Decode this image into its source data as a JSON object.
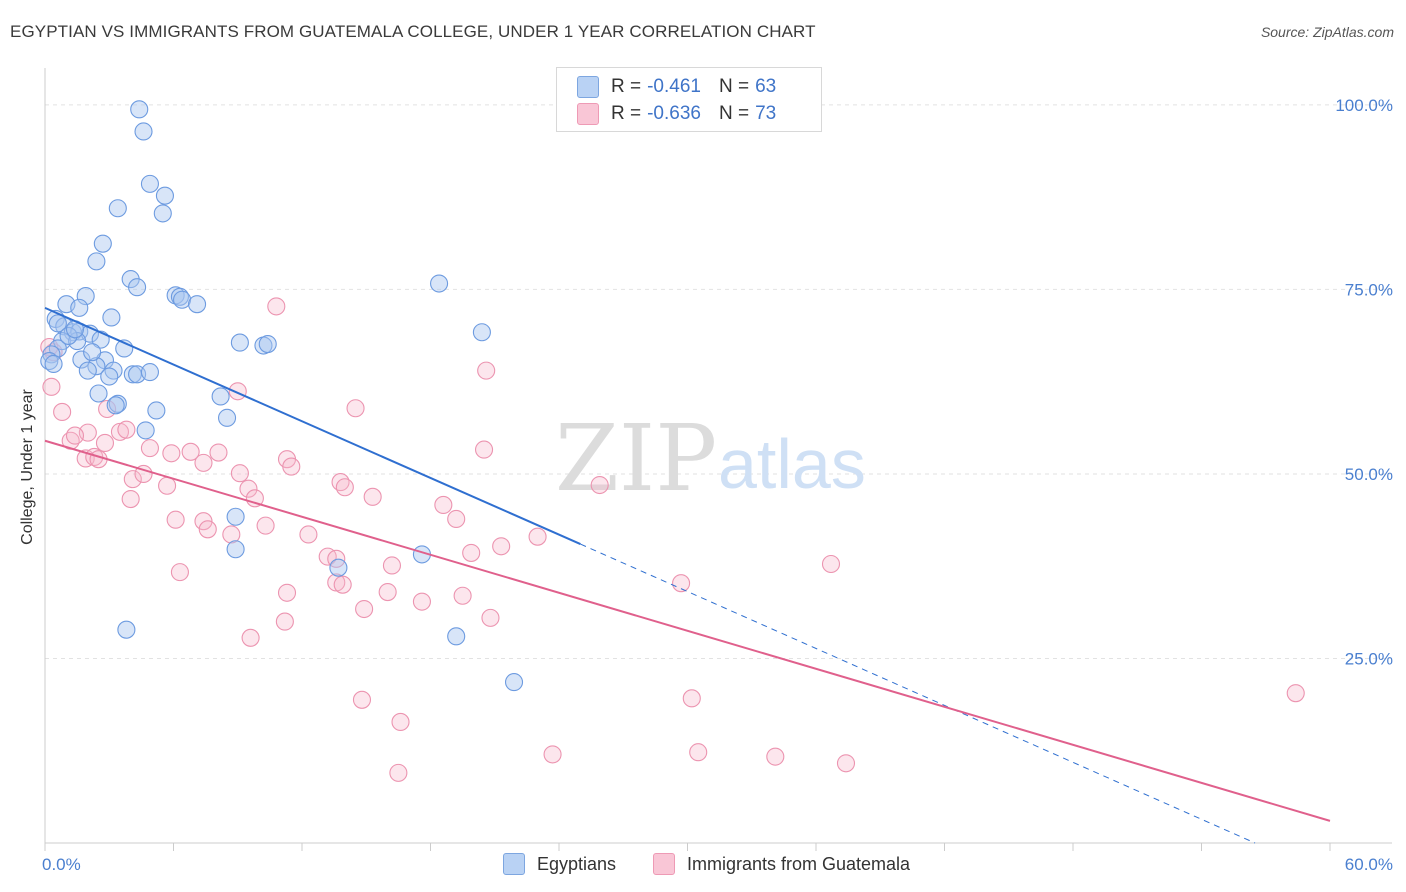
{
  "title": "EGYPTIAN VS IMMIGRANTS FROM GUATEMALA COLLEGE, UNDER 1 YEAR CORRELATION CHART",
  "source": "Source: ZipAtlas.com",
  "watermark": {
    "zip": "ZIP",
    "atlas": "atlas"
  },
  "legend": {
    "r_label": "R =",
    "n_label": "N =",
    "series": [
      {
        "r": "-0.461",
        "n": "63"
      },
      {
        "r": "-0.636",
        "n": "73"
      }
    ]
  },
  "bottom_legend": [
    "Egyptians",
    "Immigrants from Guatemala"
  ],
  "chart_data": {
    "type": "scatter",
    "title": "EGYPTIAN VS IMMIGRANTS FROM GUATEMALA COLLEGE, UNDER 1 YEAR CORRELATION CHART",
    "xlabel": "",
    "ylabel": "College, Under 1 year",
    "xlim": [
      0,
      60
    ],
    "ylim": [
      0,
      105
    ],
    "x_tick_labels": [
      "0.0%",
      "60.0%"
    ],
    "y_ticks": [
      25,
      50,
      75,
      100
    ],
    "y_tick_labels": [
      "25.0%",
      "50.0%",
      "75.0%",
      "100.0%"
    ],
    "grid": true,
    "legend_placement": "top-center",
    "colors": {
      "Egyptians": "#a9c6f0",
      "Immigrants from Guatemala": "#f6b8cb",
      "egy_line": "#2f6fd0",
      "gua_line": "#e0608c"
    },
    "series": [
      {
        "name": "Egyptians",
        "r": -0.461,
        "n": 63,
        "trend": {
          "x": [
            0,
            25
          ],
          "y": [
            72.5,
            40.5
          ],
          "dashed_to": [
            56.5,
            0
          ]
        },
        "points": [
          [
            4.4,
            99.4
          ],
          [
            4.6,
            96.4
          ],
          [
            4.9,
            89.3
          ],
          [
            5.6,
            87.7
          ],
          [
            5.5,
            85.3
          ],
          [
            3.4,
            86.0
          ],
          [
            2.7,
            81.2
          ],
          [
            2.4,
            78.8
          ],
          [
            4.0,
            76.4
          ],
          [
            4.3,
            75.3
          ],
          [
            6.1,
            74.2
          ],
          [
            6.3,
            74.0
          ],
          [
            6.4,
            73.6
          ],
          [
            7.1,
            73.0
          ],
          [
            1.9,
            74.1
          ],
          [
            1.0,
            73.0
          ],
          [
            1.6,
            72.5
          ],
          [
            0.5,
            71.0
          ],
          [
            3.1,
            71.2
          ],
          [
            0.9,
            70.0
          ],
          [
            1.3,
            69.2
          ],
          [
            1.6,
            69.3
          ],
          [
            2.1,
            69.0
          ],
          [
            0.8,
            68.0
          ],
          [
            1.5,
            68.0
          ],
          [
            2.6,
            68.2
          ],
          [
            0.6,
            67.0
          ],
          [
            3.7,
            67.0
          ],
          [
            0.3,
            66.2
          ],
          [
            1.7,
            65.5
          ],
          [
            2.8,
            65.4
          ],
          [
            2.4,
            64.6
          ],
          [
            2.0,
            64.0
          ],
          [
            3.2,
            64.0
          ],
          [
            4.1,
            63.5
          ],
          [
            4.3,
            63.5
          ],
          [
            9.1,
            67.8
          ],
          [
            10.2,
            67.4
          ],
          [
            10.4,
            67.6
          ],
          [
            18.4,
            75.8
          ],
          [
            20.4,
            69.2
          ],
          [
            2.5,
            60.9
          ],
          [
            3.4,
            59.5
          ],
          [
            3.3,
            59.3
          ],
          [
            5.2,
            58.6
          ],
          [
            8.2,
            60.5
          ],
          [
            8.5,
            57.6
          ],
          [
            4.7,
            55.9
          ],
          [
            8.9,
            44.2
          ],
          [
            8.9,
            39.8
          ],
          [
            13.7,
            37.3
          ],
          [
            17.6,
            39.1
          ],
          [
            3.8,
            28.9
          ],
          [
            19.2,
            28.0
          ],
          [
            21.9,
            21.8
          ],
          [
            0.2,
            65.3
          ],
          [
            0.6,
            70.4
          ],
          [
            1.1,
            68.7
          ],
          [
            1.4,
            69.6
          ],
          [
            2.2,
            66.5
          ],
          [
            4.9,
            63.8
          ],
          [
            0.4,
            64.9
          ],
          [
            3.0,
            63.2
          ]
        ]
      },
      {
        "name": "Immigrants from Guatemala",
        "r": -0.636,
        "n": 73,
        "trend": {
          "x": [
            0,
            60
          ],
          "y": [
            54.5,
            3.0
          ]
        },
        "points": [
          [
            0.4,
            66.5
          ],
          [
            0.3,
            61.8
          ],
          [
            0.8,
            58.4
          ],
          [
            2.9,
            58.8
          ],
          [
            1.2,
            54.5
          ],
          [
            2.0,
            55.6
          ],
          [
            1.4,
            55.2
          ],
          [
            3.5,
            55.7
          ],
          [
            3.8,
            56.0
          ],
          [
            2.8,
            54.2
          ],
          [
            1.9,
            52.1
          ],
          [
            2.3,
            52.3
          ],
          [
            2.5,
            52.0
          ],
          [
            4.9,
            53.5
          ],
          [
            5.9,
            52.8
          ],
          [
            6.8,
            53.0
          ],
          [
            7.4,
            51.5
          ],
          [
            8.1,
            52.9
          ],
          [
            11.3,
            52.0
          ],
          [
            11.5,
            51.0
          ],
          [
            4.1,
            49.3
          ],
          [
            4.6,
            50.0
          ],
          [
            5.7,
            48.4
          ],
          [
            9.1,
            50.1
          ],
          [
            9.5,
            48.0
          ],
          [
            9.8,
            46.7
          ],
          [
            13.8,
            48.9
          ],
          [
            14.0,
            48.2
          ],
          [
            15.3,
            46.9
          ],
          [
            4.0,
            46.6
          ],
          [
            6.1,
            43.8
          ],
          [
            7.4,
            43.6
          ],
          [
            7.6,
            42.5
          ],
          [
            8.7,
            41.8
          ],
          [
            10.3,
            43.0
          ],
          [
            12.3,
            41.8
          ],
          [
            14.5,
            58.9
          ],
          [
            10.8,
            72.7
          ],
          [
            9.0,
            61.2
          ],
          [
            20.6,
            64.0
          ],
          [
            25.9,
            48.5
          ],
          [
            18.6,
            45.8
          ],
          [
            19.2,
            43.9
          ],
          [
            20.5,
            53.3
          ],
          [
            13.2,
            38.8
          ],
          [
            13.6,
            38.5
          ],
          [
            13.6,
            35.3
          ],
          [
            13.9,
            35.0
          ],
          [
            16.2,
            37.6
          ],
          [
            17.6,
            32.7
          ],
          [
            16.0,
            34.0
          ],
          [
            14.9,
            31.7
          ],
          [
            19.5,
            33.5
          ],
          [
            20.8,
            30.5
          ],
          [
            19.9,
            39.3
          ],
          [
            21.3,
            40.2
          ],
          [
            23.0,
            41.5
          ],
          [
            6.3,
            36.7
          ],
          [
            9.6,
            27.8
          ],
          [
            11.2,
            30.0
          ],
          [
            11.3,
            33.9
          ],
          [
            14.8,
            19.4
          ],
          [
            16.6,
            16.4
          ],
          [
            16.5,
            9.5
          ],
          [
            23.7,
            12.0
          ],
          [
            29.7,
            35.2
          ],
          [
            36.7,
            37.8
          ],
          [
            30.2,
            19.6
          ],
          [
            30.5,
            12.3
          ],
          [
            34.1,
            11.7
          ],
          [
            37.4,
            10.8
          ],
          [
            58.4,
            20.3
          ],
          [
            0.2,
            67.2
          ]
        ]
      }
    ]
  }
}
